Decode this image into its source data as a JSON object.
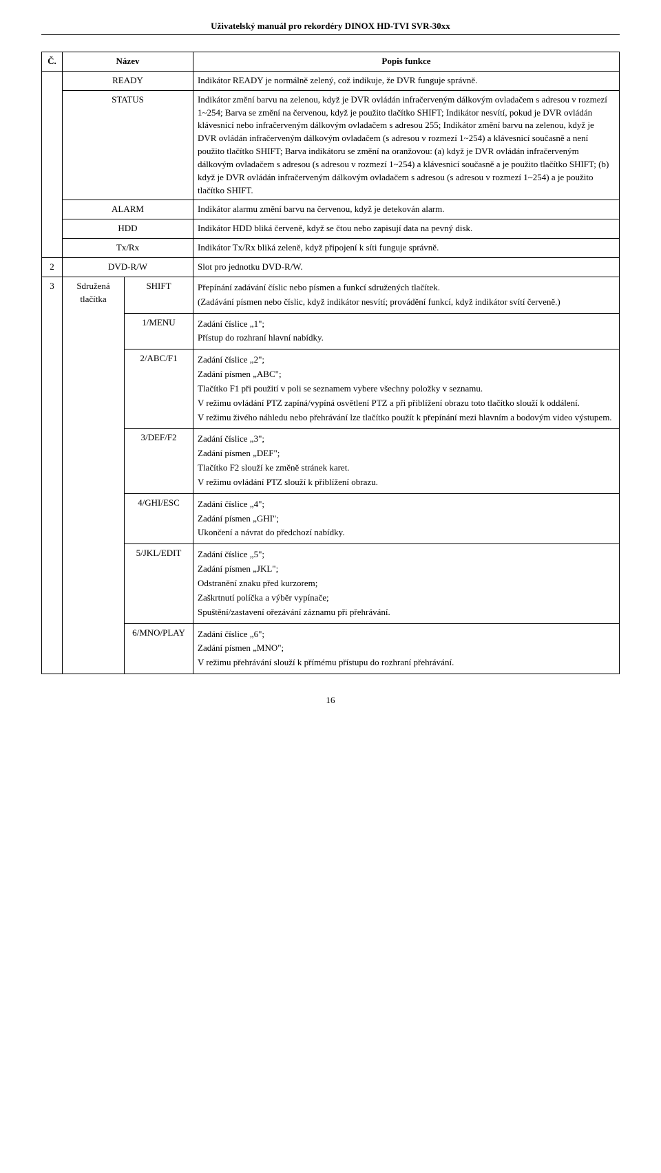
{
  "doc_title": "Uživatelský manuál pro rekordéry DINOX HD-TVI SVR-30xx",
  "columns": {
    "c1": "Č.",
    "c2": "Název",
    "c3": "Popis funkce"
  },
  "row_ready": {
    "name": "READY",
    "desc": "Indikátor READY je normálně zelený, což indikuje, že DVR funguje správně."
  },
  "row_status": {
    "name": "STATUS",
    "desc": "Indikátor změní barvu na zelenou, když je DVR ovládán infračerveným dálkovým ovladačem s adresou v rozmezí 1~254; Barva se změní na červenou, když je použito tlačítko SHIFT; Indikátor nesvítí, pokud je DVR ovládán klávesnicí nebo infračerveným dálkovým ovladačem s adresou 255; Indikátor změní barvu na zelenou, když je DVR ovládán infračerveným dálkovým ovladačem (s adresou v rozmezí 1~254) a klávesnicí současně a není použito tlačítko SHIFT; Barva indikátoru se změní na oranžovou: (a) když je DVR ovládán infračerveným dálkovým ovladačem s adresou (s adresou v rozmezí 1~254) a klávesnicí současně a je použito tlačítko SHIFT; (b) když je DVR ovládán infračerveným dálkovým ovladačem s adresou (s adresou v rozmezí 1~254) a je použito tlačítko SHIFT."
  },
  "row_alarm": {
    "name": "ALARM",
    "desc": "Indikátor alarmu změní barvu na červenou, když je detekován alarm."
  },
  "row_hdd": {
    "name": "HDD",
    "desc": "Indikátor HDD bliká červeně, když se čtou nebo zapisují data na pevný disk."
  },
  "row_txrx": {
    "name": "Tx/Rx",
    "desc": "Indikátor Tx/Rx bliká zeleně, když připojení k síti funguje správně."
  },
  "row_dvd": {
    "num": "2",
    "name": "DVD-R/W",
    "desc": "Slot pro jednotku DVD-R/W."
  },
  "row3": {
    "num": "3",
    "group": "Sdružená tlačítka",
    "shift": {
      "name": "SHIFT",
      "p1": "Přepínání zadávání číslic nebo písmen a funkcí sdružených tlačítek.",
      "p2": "(Zadávání písmen nebo číslic, když indikátor nesvítí; provádění funkcí, když indikátor svítí červeně.)"
    },
    "k1": {
      "name": "1/MENU",
      "p1": "Zadání číslice „1\";",
      "p2": "Přístup do rozhraní hlavní nabídky."
    },
    "k2": {
      "name": "2/ABC/F1",
      "p1": "Zadání číslice „2\";",
      "p2": "Zadání písmen „ABC\";",
      "p3": "Tlačítko F1 při použití v poli se seznamem vybere všechny položky v seznamu.",
      "p4": "V režimu ovládání PTZ zapíná/vypíná osvětlení PTZ a při přiblížení obrazu toto tlačítko slouží k oddálení.",
      "p5": "V režimu živého náhledu nebo přehrávání lze tlačítko použít k přepínání mezi hlavním a bodovým video výstupem."
    },
    "k3": {
      "name": "3/DEF/F2",
      "p1": "Zadání číslice „3\";",
      "p2": "Zadání písmen „DEF\";",
      "p3": "Tlačítko F2 slouží ke změně stránek karet.",
      "p4": "V režimu ovládání PTZ slouží k přiblížení obrazu."
    },
    "k4": {
      "name": "4/GHI/ESC",
      "p1": "Zadání číslice „4\";",
      "p2": "Zadání písmen „GHI\";",
      "p3": "Ukončení a návrat do předchozí nabídky."
    },
    "k5": {
      "name": "5/JKL/EDIT",
      "p1": "Zadání číslice „5\";",
      "p2": "Zadání písmen „JKL\";",
      "p3": "Odstranění znaku před kurzorem;",
      "p4": "Zaškrtnutí políčka a výběr vypínače;",
      "p5": "Spuštění/zastavení ořezávání záznamu při přehrávání."
    },
    "k6": {
      "name": "6/MNO/PLAY",
      "p1": "Zadání číslice „6\";",
      "p2": "Zadání písmen „MNO\";",
      "p3": "V režimu přehrávání slouží k přímému přístupu do rozhraní přehrávání."
    }
  },
  "page_number": "16"
}
